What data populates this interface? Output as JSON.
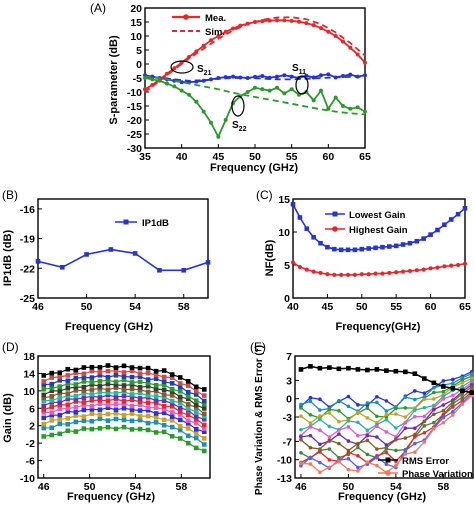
{
  "chart_data": [
    {
      "id": "A",
      "panel_label": "(A)",
      "type": "line",
      "xlabel": "Frequency (GHz)",
      "ylabel": "S-parameter (dB)",
      "xlim": [
        35,
        65
      ],
      "ylim": [
        -30,
        20
      ],
      "xticks": [
        35,
        40,
        45,
        50,
        55,
        60,
        65
      ],
      "yticks": [
        -30,
        -25,
        -20,
        -15,
        -10,
        -5,
        0,
        5,
        10,
        15,
        20
      ],
      "legend": [
        {
          "label": "Mea.",
          "style": "solid-marker",
          "color": "#e8272b"
        },
        {
          "label": "Sim.",
          "style": "dashed",
          "color": "#e8272b"
        }
      ],
      "legend_position": "top-left",
      "annotations": [
        {
          "main": "S",
          "sub": "21",
          "x": 42,
          "y": 2
        },
        {
          "main": "S",
          "sub": "11",
          "x": 58.5,
          "y": 0
        },
        {
          "main": "S",
          "sub": "22",
          "x": 49,
          "y": -14
        }
      ],
      "series": [
        {
          "name": "Mea.",
          "param": "S21",
          "color": "#e8272b",
          "dashed": false,
          "markers": true,
          "x": [
            35,
            36,
            37,
            38,
            39,
            40,
            41,
            42,
            43,
            44,
            45,
            46,
            47,
            48,
            49,
            50,
            51,
            52,
            53,
            54,
            55,
            56,
            57,
            58,
            59,
            60,
            61,
            62,
            63,
            64,
            65
          ],
          "y": [
            -9,
            -7.5,
            -5.5,
            -3.5,
            -1.5,
            0.5,
            2.5,
            4.5,
            6.5,
            8.5,
            10,
            11.5,
            12.7,
            13.7,
            14.4,
            15,
            15.3,
            15.5,
            15.6,
            15.6,
            15.4,
            15.1,
            14.6,
            13.9,
            12.8,
            11.5,
            10,
            8,
            5.8,
            3.4,
            0.5
          ]
        },
        {
          "name": "Mea.",
          "param": "S11",
          "color": "#2534d6",
          "dashed": false,
          "markers": true,
          "x": [
            35,
            36,
            37,
            38,
            39,
            40,
            41,
            42,
            43,
            44,
            45,
            46,
            47,
            48,
            49,
            50,
            51,
            52,
            53,
            54,
            55,
            56,
            57,
            58,
            59,
            60,
            61,
            62,
            63,
            64,
            65
          ],
          "y": [
            -4,
            -4.5,
            -5,
            -5.5,
            -6,
            -6.5,
            -6.5,
            -6.3,
            -6,
            -5.5,
            -5,
            -4.7,
            -4.5,
            -4.8,
            -5,
            -4.6,
            -4.3,
            -4.9,
            -4.5,
            -4,
            -4.5,
            -5,
            -4.2,
            -4.8,
            -4,
            -3.7,
            -4.8,
            -4.3,
            -3.8,
            -4.5,
            -4
          ]
        },
        {
          "name": "Mea.",
          "param": "S22",
          "color": "#2a9b2a",
          "dashed": false,
          "markers": true,
          "x": [
            35,
            36,
            37,
            38,
            39,
            40,
            41,
            42,
            43,
            44,
            45,
            46,
            47,
            48,
            49,
            50,
            51,
            52,
            53,
            54,
            55,
            56,
            57,
            58,
            59,
            60,
            61,
            62,
            63,
            64,
            65
          ],
          "y": [
            -5,
            -5.5,
            -6,
            -7,
            -8,
            -9.5,
            -11,
            -13.5,
            -17,
            -21,
            -26,
            -20,
            -14,
            -11.5,
            -10,
            -8.5,
            -9,
            -9.5,
            -8.5,
            -10.5,
            -9,
            -11,
            -10,
            -13,
            -9.5,
            -16,
            -12,
            -15,
            -16,
            -15.5,
            -17
          ]
        },
        {
          "name": "Sim.",
          "param": "S21",
          "color": "#e8272b",
          "dashed": true,
          "markers": false,
          "x": [
            35,
            37,
            39,
            41,
            43,
            45,
            47,
            49,
            51,
            53,
            55,
            57,
            59,
            61,
            63,
            65
          ],
          "y": [
            -10,
            -6,
            -2,
            2,
            5.5,
            9,
            12,
            14.2,
            15.8,
            16.6,
            16.7,
            16,
            14.2,
            11.3,
            7.5,
            3
          ]
        },
        {
          "name": "Sim.",
          "param": "S11",
          "color": "#2534d6",
          "dashed": true,
          "markers": false,
          "x": [
            35,
            37,
            39,
            41,
            43,
            45,
            47,
            49,
            51,
            53,
            55,
            57,
            59,
            61,
            63,
            65
          ],
          "y": [
            -4.5,
            -5,
            -5.5,
            -6,
            -5.8,
            -5.3,
            -5,
            -5,
            -5.2,
            -5.5,
            -5.5,
            -5.3,
            -5,
            -4.8,
            -4.6,
            -4.5
          ]
        },
        {
          "name": "Sim.",
          "param": "S22",
          "color": "#2a9b2a",
          "dashed": true,
          "markers": false,
          "x": [
            35,
            37,
            39,
            41,
            43,
            45,
            47,
            49,
            51,
            53,
            55,
            57,
            59,
            61,
            63,
            65
          ],
          "y": [
            -4.5,
            -5,
            -6,
            -7,
            -8,
            -9,
            -10.3,
            -11.3,
            -12.3,
            -13.2,
            -14.2,
            -15.2,
            -16.2,
            -17,
            -17.6,
            -18
          ]
        }
      ]
    },
    {
      "id": "B",
      "panel_label": "(B)",
      "type": "line",
      "xlabel": "Frequency (GHz)",
      "ylabel": "IP1dB (dB)",
      "xlim": [
        46,
        60
      ],
      "ylim": [
        -25,
        -15
      ],
      "xticks": [
        46,
        50,
        54,
        58
      ],
      "yticks": [
        -25,
        -22,
        -19,
        -16
      ],
      "legend_position": "top-right",
      "series": [
        {
          "name": "IP1dB",
          "color": "#2534d6",
          "markers": true,
          "x": [
            46,
            48,
            50,
            52,
            54,
            56,
            58,
            60
          ],
          "y": [
            -21.3,
            -21.9,
            -20.6,
            -20.1,
            -20.5,
            -22.2,
            -22.2,
            -21.4
          ]
        }
      ]
    },
    {
      "id": "C",
      "panel_label": "(C)",
      "type": "line",
      "xlabel": "Frequency(GHz)",
      "ylabel": "NF(dB)",
      "xlim": [
        40,
        65
      ],
      "ylim": [
        0,
        15
      ],
      "xticks": [
        40,
        45,
        50,
        55,
        60,
        65
      ],
      "xtick_labels": [
        "40",
        "45",
        "50",
        "55",
        "60",
        "65"
      ],
      "yticks": [
        0,
        5,
        10,
        15
      ],
      "legend_position": "top-center",
      "series": [
        {
          "name": "Lowest Gain",
          "color": "#2534d6",
          "markers": true,
          "x": [
            40,
            41,
            42,
            43,
            44,
            45,
            46,
            47,
            48,
            49,
            50,
            51,
            52,
            53,
            54,
            55,
            56,
            57,
            58,
            59,
            60,
            61,
            62,
            63,
            64,
            65
          ],
          "y": [
            14.2,
            12.2,
            10.5,
            9.2,
            8.3,
            7.7,
            7.4,
            7.3,
            7.3,
            7.3,
            7.4,
            7.5,
            7.6,
            7.7,
            7.8,
            7.9,
            8.1,
            8.3,
            8.6,
            9,
            9.6,
            10.3,
            11.1,
            11.9,
            12.7,
            13.6
          ]
        },
        {
          "name": "Highest Gain",
          "color": "#e8272b",
          "markers": true,
          "x": [
            40,
            41,
            42,
            43,
            44,
            45,
            46,
            47,
            48,
            49,
            50,
            51,
            52,
            53,
            54,
            55,
            56,
            57,
            58,
            59,
            60,
            61,
            62,
            63,
            64,
            65
          ],
          "y": [
            5.4,
            4.7,
            4.3,
            4,
            3.8,
            3.6,
            3.5,
            3.5,
            3.5,
            3.5,
            3.6,
            3.6,
            3.7,
            3.7,
            3.8,
            3.9,
            4,
            4.1,
            4.2,
            4.3,
            4.5,
            4.6,
            4.8,
            4.9,
            5,
            5.2
          ]
        }
      ]
    },
    {
      "id": "D",
      "panel_label": "(D)",
      "type": "line",
      "xlabel": "Frequency (GHz)",
      "ylabel": "Gain (dB)",
      "xlim": [
        45.5,
        60.5
      ],
      "ylim": [
        -10,
        18
      ],
      "xticks": [
        46,
        50,
        54,
        58
      ],
      "yticks": [
        -10,
        -6,
        -2,
        2,
        6,
        10,
        14,
        18
      ],
      "note": "14 gain states; each curve peaks near 52 GHz and rolls off at both band edges",
      "state_peaks_db": [
        1.5,
        3.4,
        4.7,
        5.9,
        6.9,
        7.9,
        8.8,
        9.6,
        10.5,
        11.4,
        12.3,
        13.4,
        14.5,
        15.6
      ],
      "state_colors": [
        "#2a9b2a",
        "#1a8fb8",
        "#c9a12b",
        "#2534d6",
        "#e05cc7",
        "#e8272b",
        "#6b2fa6",
        "#27b5a8",
        "#8a5a24",
        "#3a3a3a",
        "#2a9b2a",
        "#1a3fb8",
        "#d14a4a",
        "#000000"
      ]
    },
    {
      "id": "E",
      "panel_label": "(E)",
      "type": "line",
      "xlabel": "Frequency (GHz)",
      "ylabel": "Phase Variation & RMS Error (°)",
      "xlim": [
        45.5,
        60.5
      ],
      "ylim": [
        -13,
        7
      ],
      "xticks": [
        46,
        50,
        54,
        58
      ],
      "yticks": [
        -13,
        -10,
        -7,
        -3,
        0,
        3,
        7
      ],
      "ytick_labels": [
        "-13",
        "-10",
        "-7",
        "-3",
        "0",
        "3",
        "7"
      ],
      "legend_position": "bottom-right",
      "legend": [
        {
          "label": "RMS Error",
          "color": "#000000"
        },
        {
          "label": "Phase Variation",
          "color": "#f07a5a"
        }
      ],
      "rms_error": {
        "x": [
          46,
          46.8,
          47.6,
          48.4,
          49.2,
          50,
          50.8,
          51.6,
          52.4,
          53.2,
          54,
          54.8,
          55.6,
          56.4,
          57.2,
          58,
          58.8,
          59.6,
          60.4
        ],
        "y": [
          4.8,
          5.3,
          5,
          5.1,
          4.9,
          5,
          4.8,
          4.7,
          4.8,
          4.6,
          4.5,
          4.4,
          4.1,
          3.3,
          2.6,
          2,
          1.7,
          1.3,
          1
        ]
      },
      "phase_state_starts": [
        -0.5,
        -1.2,
        -2.4,
        -3.1,
        -4.3,
        -5.4,
        -6.7,
        -7.6,
        -8.9,
        -9.6,
        -10.5,
        -11.2
      ],
      "phase_colors": [
        "#2534d6",
        "#1a8fb8",
        "#2a9b2a",
        "#c9a12b",
        "#27b5a8",
        "#e05cc7",
        "#6b2fa6",
        "#8a5a24",
        "#3a8a3a",
        "#e8272b",
        "#5a5aff",
        "#f07a5a"
      ]
    }
  ]
}
